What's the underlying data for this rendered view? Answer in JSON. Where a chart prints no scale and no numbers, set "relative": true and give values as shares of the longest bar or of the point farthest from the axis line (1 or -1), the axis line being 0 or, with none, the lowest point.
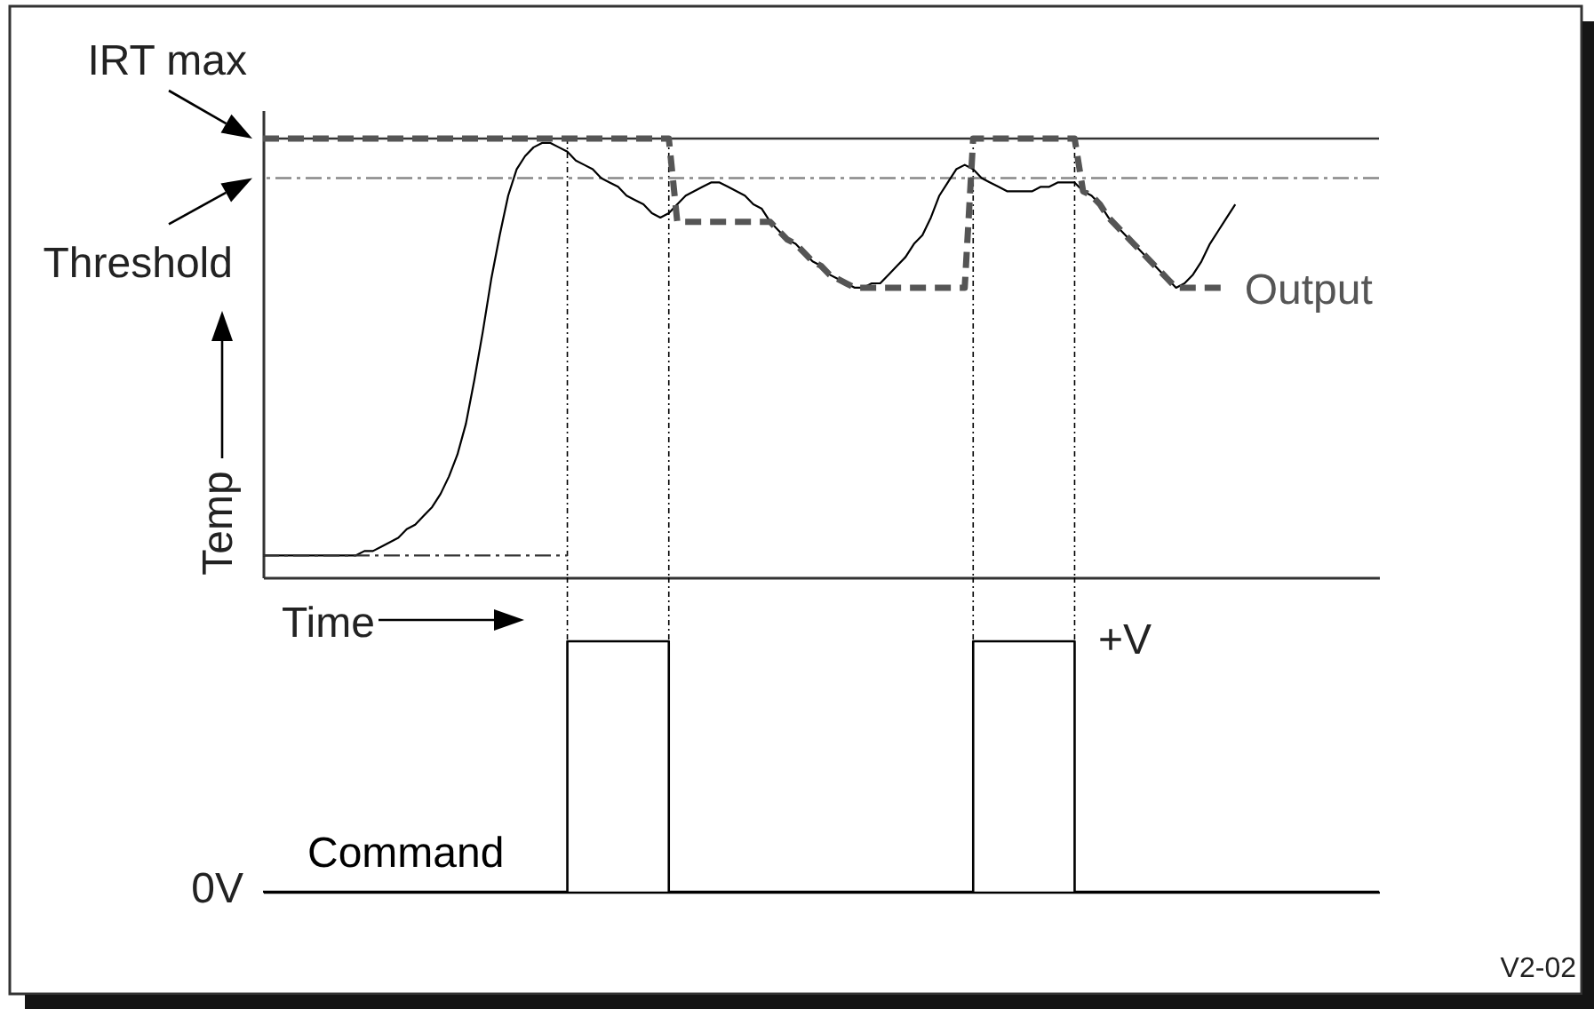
{
  "chart_data": [
    {
      "type": "line",
      "xlabel": "Time",
      "ylabel": "Temp",
      "relative": true,
      "categories": [
        null,
        null,
        null,
        null,
        null,
        null,
        null,
        null,
        null,
        null,
        null,
        null,
        null,
        null,
        null,
        null,
        null,
        null,
        null,
        null,
        null,
        null,
        null,
        null,
        null,
        null,
        null,
        null,
        null,
        null,
        null,
        null,
        null,
        null,
        null,
        null,
        null,
        null,
        null,
        null,
        null,
        null,
        null,
        null,
        null,
        null,
        null,
        null,
        null,
        null,
        null,
        null,
        null,
        null,
        null,
        null,
        null,
        null,
        null,
        null,
        null,
        null,
        null,
        null,
        null,
        null,
        null,
        null,
        null,
        null,
        null,
        null,
        null,
        null,
        null,
        null,
        null,
        null,
        null,
        null,
        null,
        null,
        null,
        null,
        null,
        null,
        null,
        null,
        null,
        null,
        null,
        null,
        null,
        null,
        null,
        null,
        null,
        null,
        null,
        null,
        null,
        null,
        null,
        null,
        null,
        null,
        null,
        null,
        null,
        null,
        null,
        null,
        null,
        null,
        null,
        null,
        null,
        null,
        null,
        null,
        null,
        null,
        null,
        null,
        null,
        null,
        null,
        null,
        null,
        null,
        null,
        null,
        null
      ],
      "series": [
        {
          "color": "#000000",
          "values": [
            0.05,
            0.05,
            0.05,
            0.05,
            0.05,
            0.05,
            0.05,
            0.05,
            0.05,
            0.05,
            0.05,
            0.05,
            0.06,
            0.06,
            0.07,
            0.08,
            0.09,
            0.11,
            0.12,
            0.14,
            0.16,
            0.19,
            0.23,
            0.28,
            0.35,
            0.45,
            0.56,
            0.68,
            0.78,
            0.87,
            0.93,
            0.96,
            0.98,
            0.99,
            0.99,
            0.98,
            0.97,
            0.95,
            0.94,
            0.93,
            0.91,
            0.9,
            0.89,
            0.87,
            0.86,
            0.85,
            0.83,
            0.82,
            0.83,
            0.85,
            0.87,
            0.88,
            0.89,
            0.9,
            0.9,
            0.89,
            0.88,
            0.87,
            0.85,
            0.84,
            0.81,
            0.79,
            0.77,
            0.76,
            0.74,
            0.72,
            0.71,
            0.69,
            0.68,
            0.67,
            0.66,
            0.66,
            0.67,
            0.67,
            0.69,
            0.71,
            0.73,
            0.76,
            0.78,
            0.82,
            0.87,
            0.9,
            0.93,
            0.94,
            0.93,
            0.91,
            0.9,
            0.89,
            0.88,
            0.88,
            0.88,
            0.88,
            0.89,
            0.89,
            0.9,
            0.9,
            0.9,
            0.88,
            0.87,
            0.85,
            0.82,
            0.8,
            0.78,
            0.76,
            0.74,
            0.72,
            0.7,
            0.68,
            0.66,
            0.67,
            0.69,
            0.72,
            0.76,
            0.79,
            0.82,
            0.85,
            null,
            null,
            null,
            null,
            null,
            null,
            null,
            null,
            null,
            null,
            null,
            null,
            null,
            null,
            null,
            null,
            null
          ]
        },
        {
          "name": "Output",
          "color": "#555555",
          "line_style": "dashed",
          "values": [
            1,
            1,
            1,
            1,
            1,
            1,
            1,
            1,
            1,
            1,
            1,
            1,
            1,
            1,
            1,
            1,
            1,
            1,
            1,
            1,
            1,
            1,
            1,
            1,
            1,
            1,
            1,
            1,
            1,
            1,
            1,
            1,
            1,
            1,
            1,
            1,
            1,
            1,
            1,
            1,
            1,
            1,
            1,
            1,
            1,
            1,
            1,
            1,
            1,
            0.81,
            0.81,
            0.81,
            0.81,
            0.81,
            0.81,
            0.81,
            0.81,
            0.81,
            0.81,
            0.81,
            0.81,
            0.79,
            0.77,
            0.76,
            0.74,
            0.72,
            0.71,
            0.69,
            0.68,
            0.67,
            0.66,
            0.66,
            0.66,
            0.66,
            0.66,
            0.66,
            0.66,
            0.66,
            0.66,
            0.66,
            0.66,
            0.66,
            0.66,
            0.66,
            1,
            1,
            1,
            1,
            1,
            1,
            1,
            1,
            1,
            1,
            1,
            1,
            1,
            0.88,
            0.87,
            0.85,
            0.82,
            0.8,
            0.78,
            0.76,
            0.74,
            0.72,
            0.7,
            0.68,
            0.66,
            0.66,
            0.66,
            0.66,
            0.66,
            0.66,
            0.66,
            null,
            null,
            null,
            null,
            null,
            null,
            null,
            null,
            null,
            null,
            null,
            null,
            null,
            null,
            null,
            null,
            null,
            null
          ]
        },
        {
          "color": "#333333",
          "line_style": "dashed",
          "values": [
            0.05,
            0.05,
            0.05,
            0.05,
            0.05,
            0.05,
            0.05,
            0.05,
            0.05,
            0.05,
            0.05,
            0.05,
            0.05,
            0.05,
            0.05,
            0.05,
            0.05,
            0.05,
            0.05,
            0.05,
            0.05,
            0.05,
            0.05,
            0.05,
            0.05,
            0.05,
            0.05,
            0.05,
            0.05,
            0.05,
            0.05,
            0.05,
            0.05,
            0.05,
            0.05,
            0.05,
            0.05,
            null,
            null,
            null,
            null,
            null,
            null,
            null,
            null,
            null,
            null,
            null,
            null,
            null,
            null,
            null,
            null,
            null,
            null,
            null,
            null,
            null,
            null,
            null,
            null,
            null,
            null,
            null,
            null,
            null,
            null,
            null,
            null,
            null,
            null,
            null,
            null,
            null,
            null,
            null,
            null,
            null,
            null,
            null,
            null,
            null,
            null,
            null,
            null,
            null,
            null,
            null,
            null,
            null,
            null,
            null,
            null,
            null,
            null,
            null,
            null,
            null,
            null,
            null,
            null,
            null,
            null,
            null,
            null,
            null,
            null,
            null,
            null,
            null,
            null,
            null,
            null,
            null,
            null,
            null,
            null,
            null,
            null,
            null,
            null,
            null,
            null,
            null,
            null,
            null,
            null,
            null,
            null,
            null,
            null,
            null,
            null
          ]
        }
      ],
      "ref_lines": [
        {
          "axis": "y",
          "value": 1,
          "label": "IRT max",
          "color": "#333333"
        },
        {
          "axis": "y",
          "value": 0.91,
          "label": "Threshold",
          "color": "#888888",
          "line_style": "dashed"
        }
      ]
    },
    {
      "type": "step",
      "relative": true,
      "categories": [
        null,
        null,
        null,
        null,
        null,
        null,
        null,
        null,
        null,
        null,
        null,
        null,
        null,
        null,
        null,
        null,
        null,
        null,
        null,
        null,
        null,
        null,
        null,
        null,
        null,
        null,
        null,
        null,
        null,
        null,
        null,
        null,
        null,
        null,
        null,
        null,
        null,
        null,
        null,
        null,
        null,
        null,
        null,
        null,
        null,
        null,
        null,
        null,
        null,
        null,
        null,
        null,
        null,
        null,
        null,
        null,
        null,
        null,
        null,
        null,
        null,
        null,
        null,
        null,
        null,
        null,
        null,
        null,
        null,
        null,
        null,
        null,
        null,
        null,
        null,
        null,
        null,
        null,
        null,
        null,
        null,
        null,
        null,
        null,
        null,
        null,
        null,
        null,
        null,
        null,
        null,
        null,
        null,
        null,
        null,
        null,
        null,
        null,
        null,
        null,
        null,
        null,
        null,
        null,
        null,
        null,
        null,
        null,
        null,
        null,
        null,
        null,
        null,
        null,
        null,
        null,
        null,
        null,
        null,
        null,
        null,
        null,
        null,
        null,
        null,
        null,
        null,
        null,
        null,
        null,
        null,
        null,
        null
      ],
      "series": [
        {
          "name": "Command",
          "color": "#000000",
          "values": [
            0,
            0,
            0,
            0,
            0,
            0,
            0,
            0,
            0,
            0,
            0,
            0,
            0,
            0,
            0,
            0,
            0,
            0,
            0,
            0,
            0,
            0,
            0,
            0,
            0,
            0,
            0,
            0,
            0,
            0,
            0,
            0,
            0,
            0,
            0,
            0,
            1,
            1,
            1,
            1,
            1,
            1,
            1,
            1,
            1,
            1,
            1,
            1,
            0,
            0,
            0,
            0,
            0,
            0,
            0,
            0,
            0,
            0,
            0,
            0,
            0,
            0,
            0,
            0,
            0,
            0,
            0,
            0,
            0,
            0,
            0,
            0,
            0,
            0,
            0,
            0,
            0,
            0,
            0,
            0,
            0,
            0,
            0,
            0,
            1,
            1,
            1,
            1,
            1,
            1,
            1,
            1,
            1,
            1,
            1,
            1,
            0,
            0,
            0,
            0,
            0,
            0,
            0,
            0,
            0,
            0,
            0,
            0,
            0,
            0,
            0,
            0,
            0,
            0,
            0,
            0,
            0,
            0,
            0,
            0,
            0,
            0,
            0,
            0,
            0,
            0,
            0,
            0,
            0,
            0,
            0,
            0,
            0
          ]
        }
      ],
      "annotations": [
        "0V",
        "+V",
        "V2-02"
      ]
    }
  ]
}
